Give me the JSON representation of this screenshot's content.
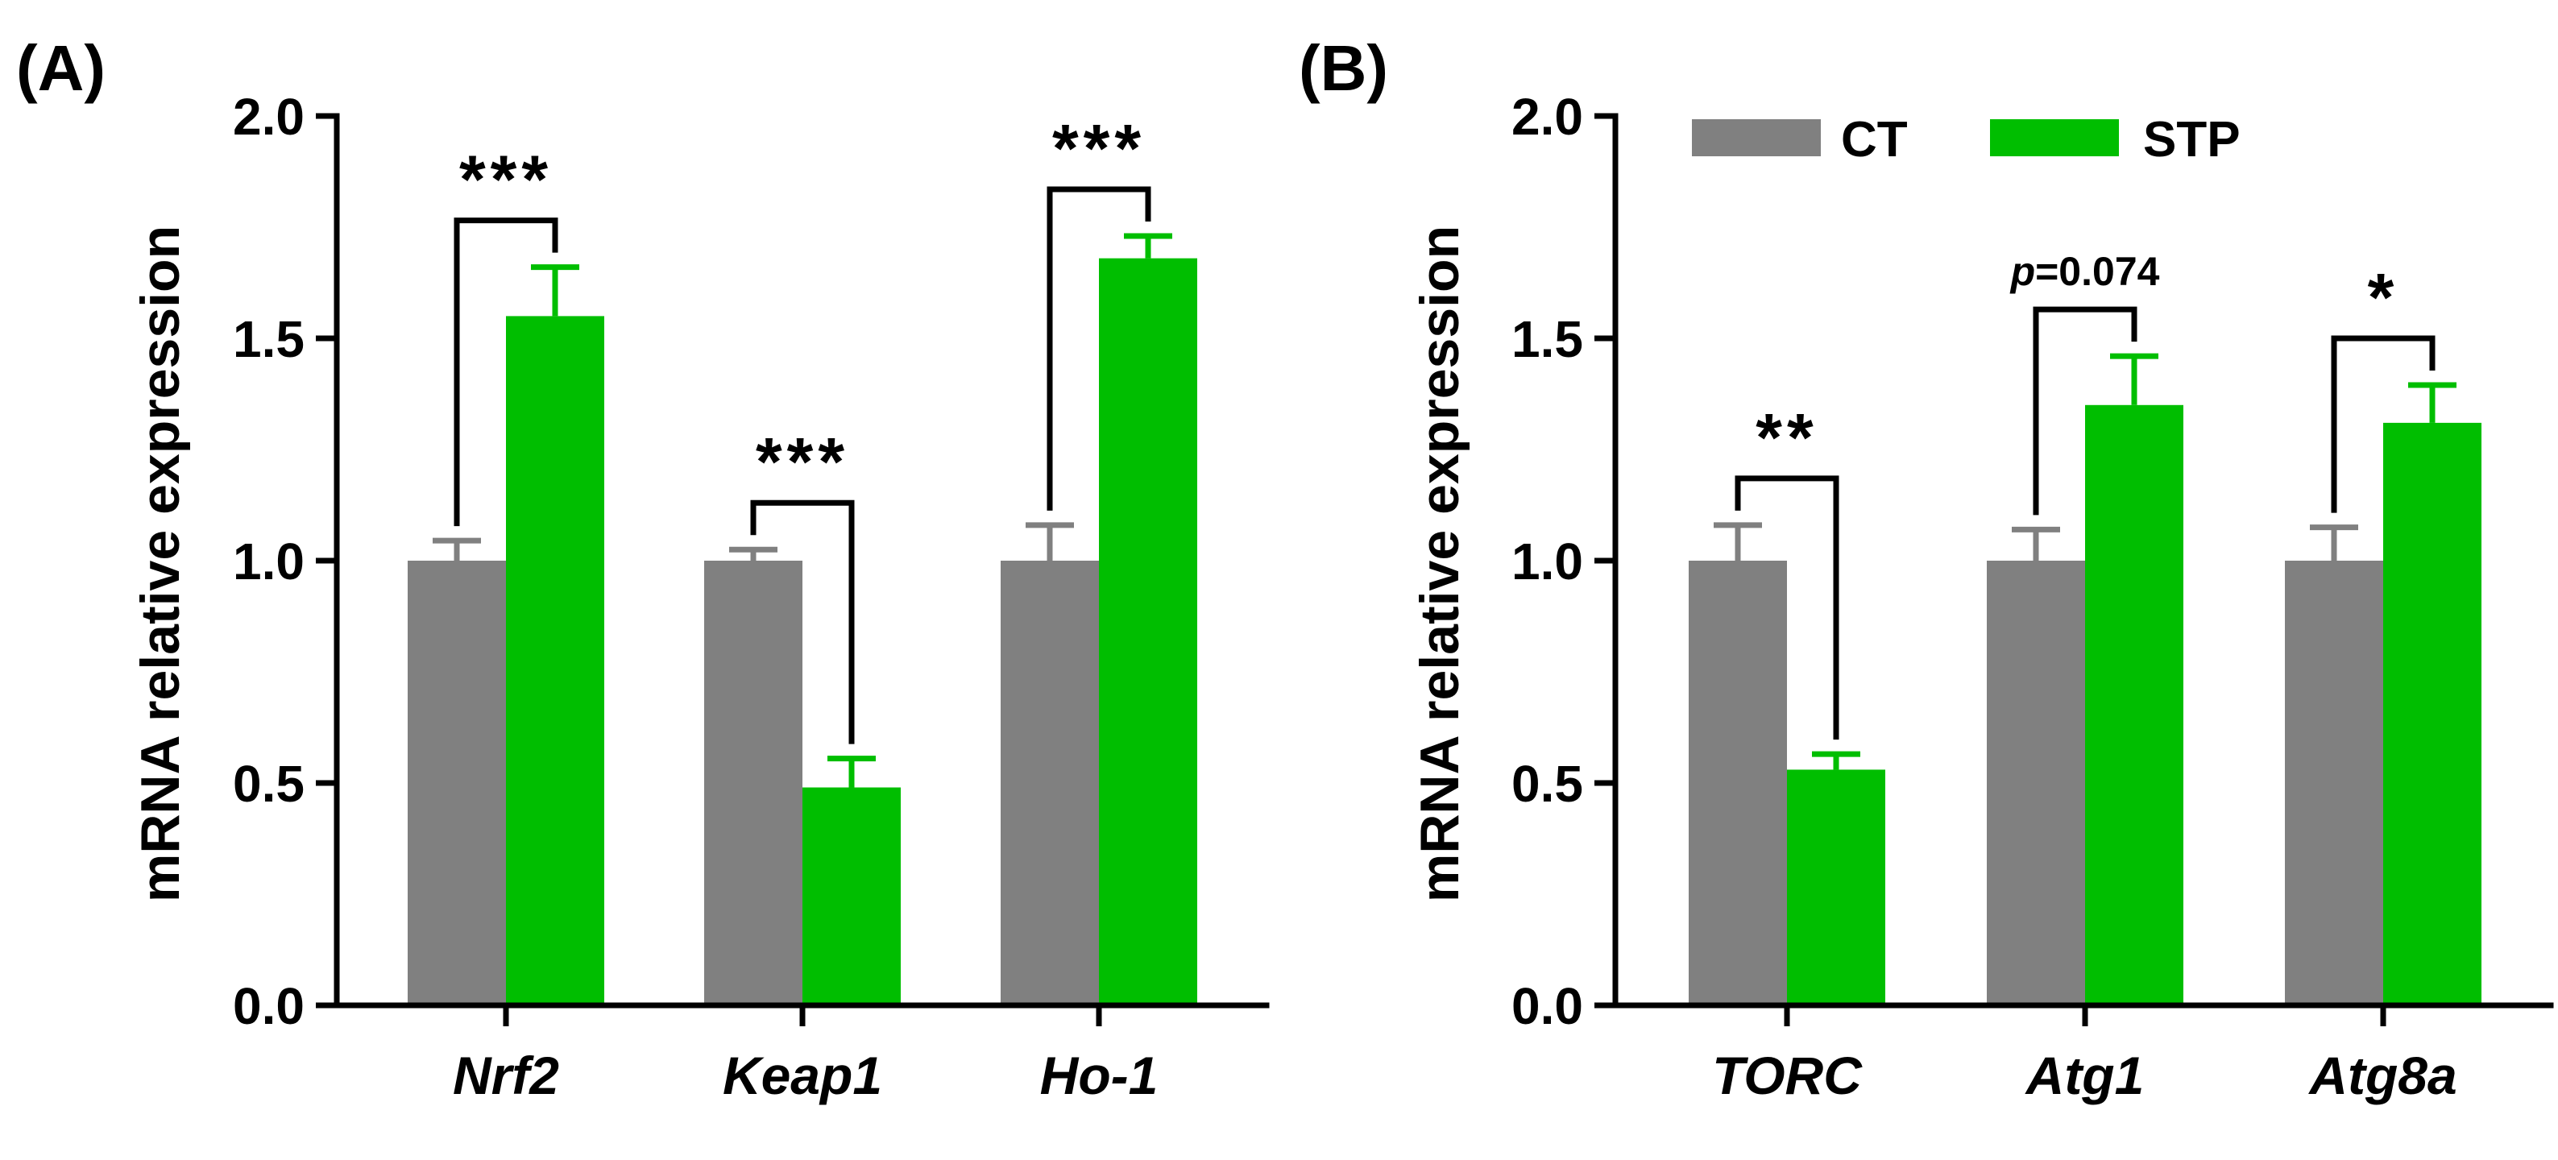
{
  "colors": {
    "CT": "#808080",
    "STP": "#00BE00",
    "axis": "#000000"
  },
  "legend": {
    "items": [
      {
        "key": "CT",
        "label": "CT"
      },
      {
        "key": "STP",
        "label": "STP"
      }
    ]
  },
  "chart_data": [
    {
      "type": "bar",
      "panel_label": "(A)",
      "ylabel": "mRNA relative expression",
      "ylim": [
        0,
        2.0
      ],
      "yticks": [
        "0.0",
        "0.5",
        "1.0",
        "1.5",
        "2.0"
      ],
      "categories": [
        "Nrf2",
        "Keap1",
        "Ho-1"
      ],
      "series": [
        {
          "name": "CT",
          "values": [
            1.0,
            1.0,
            1.0
          ],
          "errors": [
            0.045,
            0.025,
            0.08
          ]
        },
        {
          "name": "STP",
          "values": [
            1.55,
            0.49,
            1.68
          ],
          "errors": [
            0.11,
            0.065,
            0.05
          ]
        }
      ],
      "annotations": [
        "***",
        "***",
        "***"
      ],
      "legend": false
    },
    {
      "type": "bar",
      "panel_label": "(B)",
      "ylabel": "mRNA relative expression",
      "ylim": [
        0,
        2.0
      ],
      "yticks": [
        "0.0",
        "0.5",
        "1.0",
        "1.5",
        "2.0"
      ],
      "categories": [
        "TORC",
        "Atg1",
        "Atg8a"
      ],
      "series": [
        {
          "name": "CT",
          "values": [
            1.0,
            1.0,
            1.0
          ],
          "errors": [
            0.08,
            0.07,
            0.075
          ]
        },
        {
          "name": "STP",
          "values": [
            0.53,
            1.35,
            1.31
          ],
          "errors": [
            0.035,
            0.11,
            0.085
          ]
        }
      ],
      "annotations": [
        "**",
        "p=0.074",
        "*"
      ],
      "legend": true
    }
  ]
}
